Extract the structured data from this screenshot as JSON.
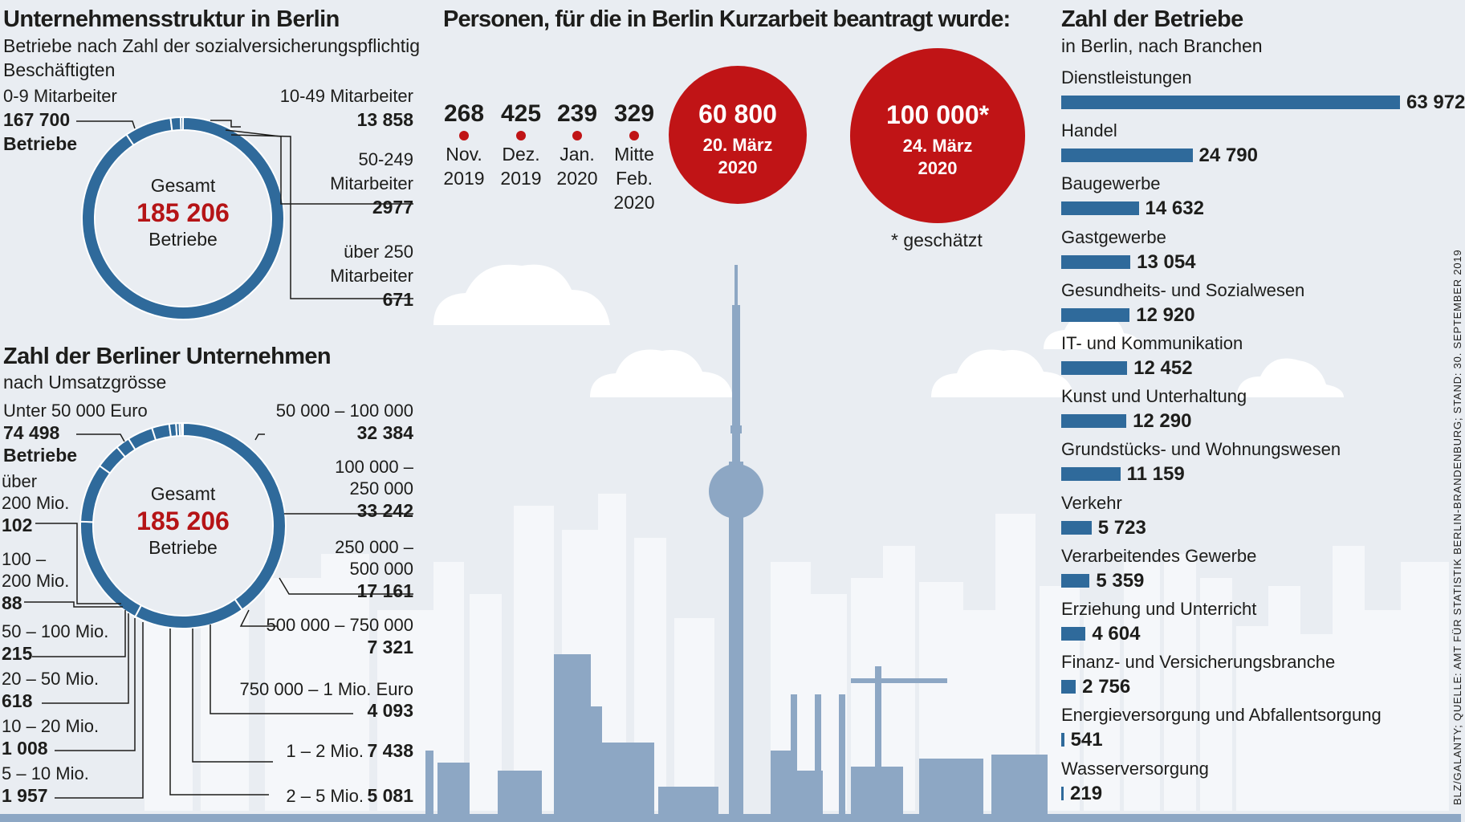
{
  "colors": {
    "donut": "#2f6a9b",
    "bar": "#2f6a9b",
    "red": "#c01416",
    "skyline": "#8da7c4",
    "skyline_light": "#f4f6f9",
    "cloud": "#ffffff"
  },
  "left_top": {
    "title": "Unternehmensstruktur in Berlin",
    "subtitle_1": "Betriebe nach Zahl der sozialversicherungspflichtig",
    "subtitle_2": "Beschäftigten",
    "center_1": "Gesamt",
    "center_2": "185 206",
    "center_3": "Betriebe",
    "unit_word": "Betriebe",
    "segments": [
      {
        "label_lines": [
          "0-9 Mitarbeiter"
        ],
        "value": "167 700"
      },
      {
        "label_lines": [
          "10-49 Mitarbeiter"
        ],
        "value": "13 858"
      },
      {
        "label_lines": [
          "50-249",
          "Mitarbeiter"
        ],
        "value": "2977"
      },
      {
        "label_lines": [
          "über 250",
          "Mitarbeiter"
        ],
        "value": "671"
      }
    ]
  },
  "left_bottom": {
    "title": "Zahl der Berliner Unternehmen",
    "subtitle": "nach Umsatzgrösse",
    "center_1": "Gesamt",
    "center_2": "185 206",
    "center_3": "Betriebe",
    "unit_word": "Betriebe",
    "segments": [
      {
        "label_lines": [
          "Unter 50 000 Euro"
        ],
        "value": "74 498"
      },
      {
        "label_lines": [
          "50 000 – 100 000"
        ],
        "value": "32 384"
      },
      {
        "label_lines": [
          "100 000 –",
          "250 000"
        ],
        "value": "33 242"
      },
      {
        "label_lines": [
          "250 000 –",
          "500 000"
        ],
        "value": "17 161"
      },
      {
        "label_lines": [
          "500 000 – 750 000"
        ],
        "value": "7 321"
      },
      {
        "label_lines": [
          "750 000 – 1 Mio. Euro"
        ],
        "value": "4 093"
      },
      {
        "label_lines": [
          "1 – 2 Mio."
        ],
        "value": "7 438"
      },
      {
        "label_lines": [
          "2 – 5 Mio."
        ],
        "value": "5 081"
      },
      {
        "label_lines": [
          "5 – 10 Mio."
        ],
        "value": "1 957"
      },
      {
        "label_lines": [
          "10 – 20 Mio."
        ],
        "value": "1 008"
      },
      {
        "label_lines": [
          "20 – 50 Mio."
        ],
        "value": "618"
      },
      {
        "label_lines": [
          "50 – 100 Mio."
        ],
        "value": "215"
      },
      {
        "label_lines": [
          "100 –",
          "200 Mio."
        ],
        "value": "88"
      },
      {
        "label_lines": [
          "über",
          "200 Mio."
        ],
        "value": "102"
      }
    ]
  },
  "middle": {
    "title": "Personen, für die in Berlin Kurzarbeit beantragt wurde:",
    "points": [
      {
        "value": "268",
        "label_lines": [
          "Nov.",
          "2019"
        ]
      },
      {
        "value": "425",
        "label_lines": [
          "Dez.",
          "2019"
        ]
      },
      {
        "value": "239",
        "label_lines": [
          "Jan.",
          "2020"
        ]
      },
      {
        "value": "329",
        "label_lines": [
          "Mitte",
          "Feb.",
          "2020"
        ]
      }
    ],
    "big": [
      {
        "value": "60 800",
        "label_lines": [
          "20. März",
          "2020"
        ]
      },
      {
        "value": "100 000*",
        "label_lines": [
          "24. März",
          "2020"
        ]
      }
    ],
    "footnote": "* geschätzt"
  },
  "right": {
    "title": "Zahl der Betriebe",
    "subtitle": "in Berlin, nach Branchen"
  },
  "source": "BLZ/GALANTY; QUELLE: AMT FÜR STATISTIK BERLIN-BRANDENBURG; STAND: 30. SEPTEMBER 2019",
  "chart_data": [
    {
      "type": "pie",
      "title": "Unternehmensstruktur in Berlin",
      "subtitle": "Betriebe nach Zahl der sozialversicherungspflichtig Beschäftigten",
      "total": 185206,
      "categories": [
        "0-9 Mitarbeiter",
        "10-49 Mitarbeiter",
        "50-249 Mitarbeiter",
        "über 250 Mitarbeiter"
      ],
      "values": [
        167700,
        13858,
        2977,
        671
      ]
    },
    {
      "type": "pie",
      "title": "Zahl der Berliner Unternehmen",
      "subtitle": "nach Umsatzgrösse",
      "total": 185206,
      "categories": [
        "Unter 50 000 Euro",
        "50 000 – 100 000",
        "100 000 – 250 000",
        "250 000 – 500 000",
        "500 000 – 750 000",
        "750 000 – 1 Mio. Euro",
        "1 – 2 Mio.",
        "2 – 5 Mio.",
        "5 – 10 Mio.",
        "10 – 20 Mio.",
        "20 – 50 Mio.",
        "50 – 100 Mio.",
        "100 – 200 Mio.",
        "über 200 Mio."
      ],
      "values": [
        74498,
        32384,
        33242,
        17161,
        7321,
        4093,
        7438,
        5081,
        1957,
        1008,
        618,
        215,
        88,
        102
      ]
    },
    {
      "type": "bar",
      "title": "Zahl der Betriebe",
      "subtitle": "in Berlin, nach Branchen",
      "orientation": "horizontal",
      "categories": [
        "Dienstleistungen",
        "Handel",
        "Baugewerbe",
        "Gastgewerbe",
        "Gesundheits- und Sozialwesen",
        "IT- und Kommunikation",
        "Kunst und Unterhaltung",
        "Grundstücks- und Wohnungswesen",
        "Verkehr",
        "Verarbeitendes Gewerbe",
        "Erziehung und Unterricht",
        "Finanz- und Versicherungsbranche",
        "Energieversorgung und Abfallentsorgung",
        "Wasserversorgung"
      ],
      "values": [
        63972,
        24790,
        14632,
        13054,
        12920,
        12452,
        12290,
        11159,
        5723,
        5359,
        4604,
        2756,
        541,
        219
      ],
      "value_labels": [
        "63 972",
        "24 790",
        "14 632",
        "13 054",
        "12 920",
        "12 452",
        "12 290",
        "11 159",
        "5 723",
        "5 359",
        "4 604",
        "2 756",
        "541",
        "219"
      ]
    },
    {
      "type": "table",
      "title": "Personen, für die in Berlin Kurzarbeit beantragt wurde:",
      "categories": [
        "Nov. 2019",
        "Dez. 2019",
        "Jan. 2020",
        "Mitte Feb. 2020",
        "20. März 2020",
        "24. März 2020"
      ],
      "values": [
        268,
        425,
        239,
        329,
        60800,
        100000
      ],
      "notes": [
        "",
        "",
        "",
        "",
        "",
        "geschätzt"
      ]
    }
  ]
}
